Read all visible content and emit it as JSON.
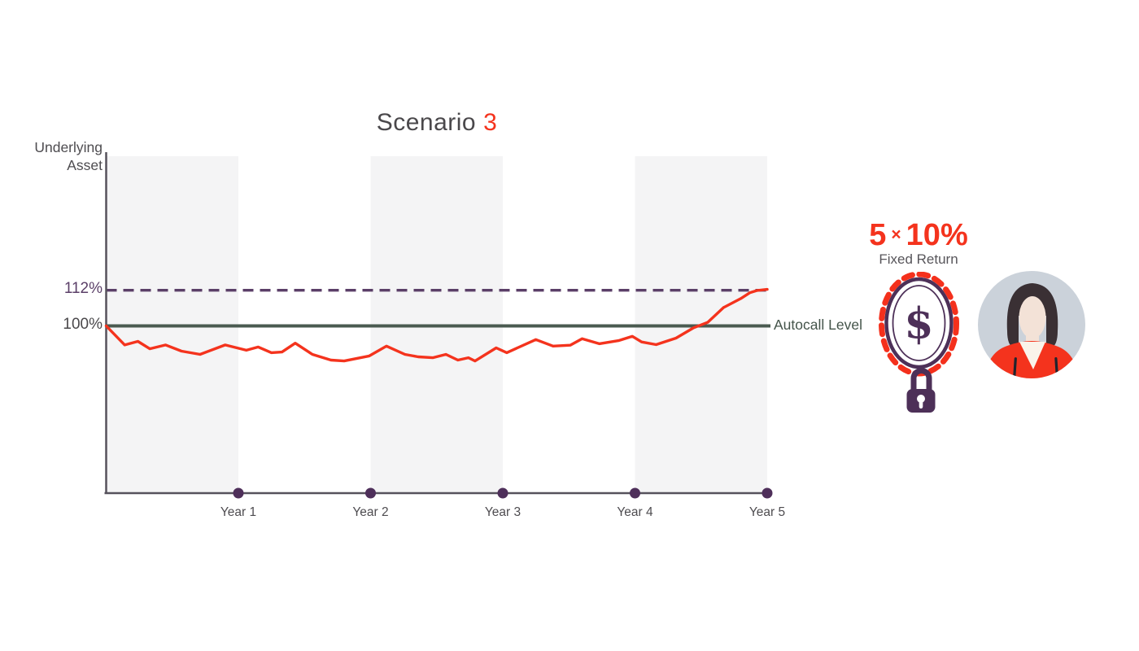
{
  "title": {
    "prefix": "Scenario",
    "number": "3"
  },
  "y_axis": {
    "label_line1": "Underlying",
    "label_line2": "Asset",
    "barrier_tick": "112%",
    "autocall_tick": "100%"
  },
  "autocall_label": "Autocall Level",
  "x_ticks": [
    "Year 1",
    "Year 2",
    "Year 3",
    "Year 4",
    "Year 5"
  ],
  "panel": {
    "factor": "5",
    "times": "×",
    "value": "10%",
    "caption": "Fixed Return"
  },
  "icons": {
    "coin_symbol": "$"
  },
  "colors": {
    "accent_red": "#f4331d",
    "price_line": "#f4331d",
    "barrier_purple": "#5b3f68",
    "autocall_green": "#4a5a50",
    "axis": "#56525c",
    "dot": "#4e2f5a",
    "band": "#f4f4f5",
    "text_dark": "#4a484b",
    "coin_purple": "#4d3058",
    "chain_red": "#f4301c",
    "avatar_bg": "#cbd2da",
    "hair": "#3a3034",
    "skin": "#f3e2d7",
    "shirt_cream": "#faf3ea",
    "slit_dark": "#20242e"
  },
  "chart_data": {
    "type": "line",
    "title": "Scenario 3",
    "xlabel": "",
    "ylabel": "Underlying Asset",
    "x_range": [
      0,
      5
    ],
    "x_tick_labels": [
      "Year 1",
      "Year 2",
      "Year 3",
      "Year 4",
      "Year 5"
    ],
    "y_tick_labels": [
      "112%",
      "100%"
    ],
    "levels": {
      "autocall_level_pct": 100,
      "barrier_dashed_pct": 112
    },
    "legend": "none",
    "grid": "off",
    "shaded_band_year_ranges": [
      [
        0,
        1
      ],
      [
        2,
        3
      ],
      [
        4,
        5
      ]
    ],
    "series": [
      {
        "name": "Underlying Asset",
        "unit": "percent of initial level",
        "points": [
          [
            0,
            100
          ],
          [
            0.14,
            93.6
          ],
          [
            0.24,
            94.8
          ],
          [
            0.33,
            92.3
          ],
          [
            0.45,
            93.6
          ],
          [
            0.57,
            91.5
          ],
          [
            0.71,
            90.4
          ],
          [
            0.9,
            93.6
          ],
          [
            1.06,
            91.8
          ],
          [
            1.15,
            92.9
          ],
          [
            1.25,
            91.0
          ],
          [
            1.33,
            91.2
          ],
          [
            1.43,
            94.2
          ],
          [
            1.56,
            90.4
          ],
          [
            1.7,
            88.5
          ],
          [
            1.8,
            88.2
          ],
          [
            1.99,
            89.9
          ],
          [
            2.12,
            93.2
          ],
          [
            2.26,
            90.4
          ],
          [
            2.36,
            89.6
          ],
          [
            2.47,
            89.3
          ],
          [
            2.57,
            90.4
          ],
          [
            2.66,
            88.5
          ],
          [
            2.74,
            89.3
          ],
          [
            2.79,
            88.2
          ],
          [
            2.95,
            92.6
          ],
          [
            3.03,
            91.0
          ],
          [
            3.25,
            95.4
          ],
          [
            3.38,
            93.2
          ],
          [
            3.51,
            93.5
          ],
          [
            3.6,
            95.7
          ],
          [
            3.73,
            94.0
          ],
          [
            3.88,
            95.1
          ],
          [
            3.98,
            96.5
          ],
          [
            4.05,
            94.6
          ],
          [
            4.16,
            93.7
          ],
          [
            4.31,
            95.9
          ],
          [
            4.44,
            99.3
          ],
          [
            4.55,
            101.2
          ],
          [
            4.67,
            106.2
          ],
          [
            4.8,
            109.2
          ],
          [
            4.87,
            111.2
          ],
          [
            4.92,
            111.9
          ],
          [
            5,
            112.3
          ]
        ]
      }
    ],
    "annotations": [
      "Autocall Level at 100%",
      "Fixed Return 5 × 10%"
    ]
  }
}
